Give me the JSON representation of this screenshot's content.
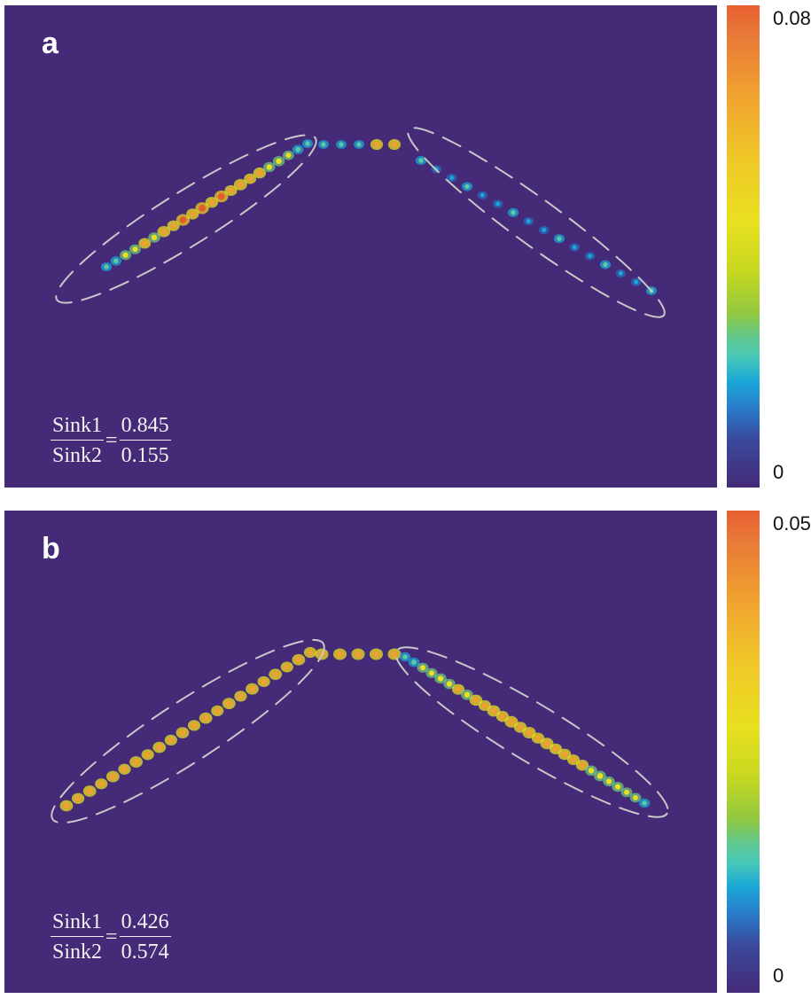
{
  "panels": [
    {
      "label": "a",
      "ratio": {
        "numerator_label": "Sink1",
        "denominator_label": "Sink2",
        "numerator_value": "0.845",
        "denominator_value": "0.155"
      },
      "colorbar": {
        "max_label": "0.08",
        "min_label": "0"
      }
    },
    {
      "label": "b",
      "ratio": {
        "numerator_label": "Sink1",
        "denominator_label": "Sink2",
        "numerator_value": "0.426",
        "denominator_value": "0.574"
      },
      "colorbar": {
        "max_label": "0.05",
        "min_label": "0"
      }
    }
  ],
  "colors": {
    "background": "#452a78",
    "dashed_outline": "#c8c8c8",
    "colormap": [
      "#452a78",
      "#2a78c8",
      "#1aa8d8",
      "#60c890",
      "#c8d820",
      "#e8e020",
      "#f0a030",
      "#e86030"
    ]
  }
}
